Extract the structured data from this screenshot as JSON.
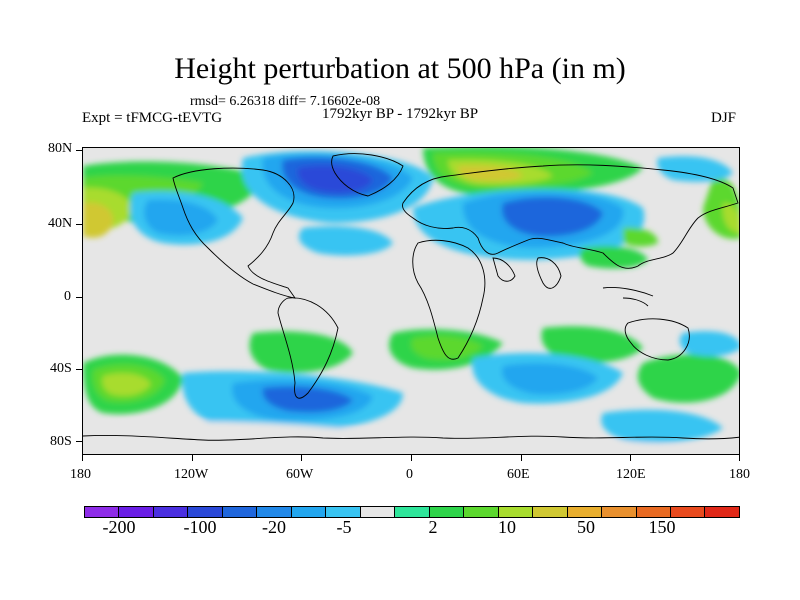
{
  "title": "Height perturbation at 500 hPa (in m)",
  "stats": "rmsd= 6.26318 diff= 7.16602e-08",
  "experiment": "Expt = tFMCG-tEVTG",
  "period": "1792kyr BP - 1792kyr BP",
  "season": "DJF",
  "lat_labels": [
    "80N",
    "40N",
    "0",
    "40S",
    "80S"
  ],
  "lon_labels": [
    "180",
    "120W",
    "60W",
    "0",
    "60E",
    "120E",
    "180"
  ],
  "colorbar": {
    "colors": [
      "#8e2ce8",
      "#6a1ee6",
      "#4a2fe0",
      "#2a48d8",
      "#1f66dc",
      "#2188e8",
      "#22a6ef",
      "#39c4f2",
      "#e6e6e6",
      "#2ee59a",
      "#2ed44a",
      "#5cd82e",
      "#a8dc2e",
      "#d0c832",
      "#e8ae2e",
      "#e8902e",
      "#e86a22",
      "#e84a1e",
      "#e02818"
    ],
    "labels": [
      "-200",
      "-100",
      "-20",
      "-5",
      "2",
      "10",
      "50",
      "150"
    ]
  }
}
